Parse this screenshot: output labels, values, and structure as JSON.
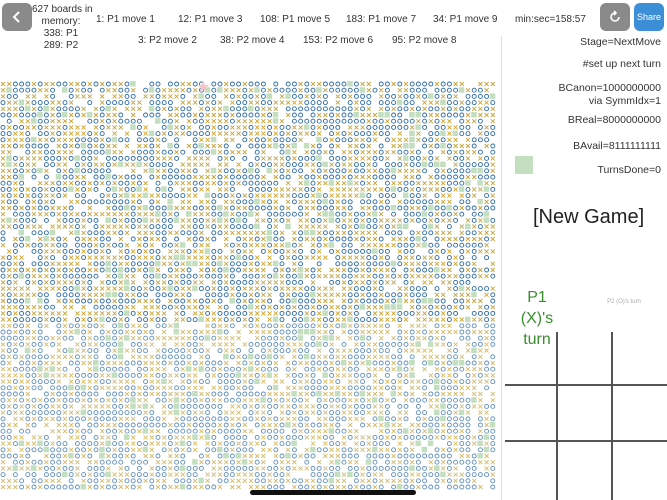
{
  "header": {
    "back_icon": "chevron-left-icon",
    "refresh_icon": "refresh-icon",
    "share_label": "Share",
    "boards_info": [
      "627 boards in",
      "memory:",
      "338: P1",
      "289: P2"
    ],
    "moves_row1": [
      "1: P1 move 1",
      "12: P1 move 3",
      "108: P1 move 5",
      "183: P1 move 7",
      "34: P1 move 9"
    ],
    "moves_row2": [
      "3: P2 move 2",
      "38: P2 move 4",
      "153: P2 move 6",
      "95: P2 move 8"
    ],
    "timer": "min:sec=158:57"
  },
  "side": {
    "stage": "Stage=NextMove",
    "setup": "#set up next turn",
    "bcanon": "BCanon=1000000000",
    "symm": "via SymmIdx=1",
    "breal": "BReal=8000000000",
    "bavail": "BAvail=8111111111",
    "turns_done": "TurnsDone=0",
    "new_game": "[New Game]",
    "p1_turn": "P1 (X)'s turn",
    "p2_turn": "P2 (O)'s turn"
  },
  "colors": {
    "x_color": "#c9a33a",
    "o_color": "#2c6aa8",
    "green_cell": "#c4dfc0",
    "p1_text": "#3a8e2f",
    "share_bg": "#3c8fd6"
  }
}
